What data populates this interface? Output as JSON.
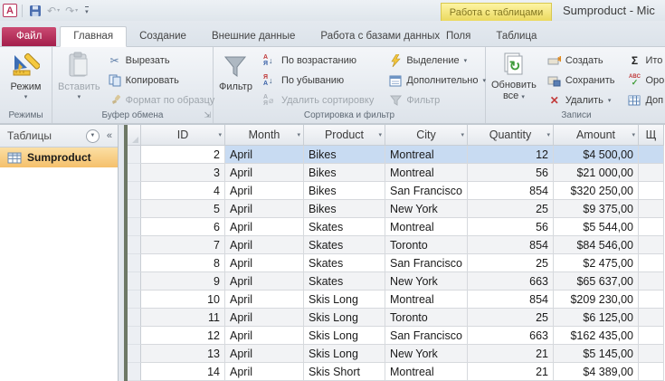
{
  "titlebar": {
    "app_title": "Sumproduct - Mic",
    "contextual_group": "Работа с таблицами"
  },
  "tabs": {
    "file": "Файл",
    "items": [
      "Главная",
      "Создание",
      "Внешние данные",
      "Работа с базами данных"
    ],
    "contextual": [
      "Поля",
      "Таблица"
    ],
    "active": "Главная"
  },
  "ribbon": {
    "view": "Режим",
    "views_group": "Режимы",
    "paste": "Вставить",
    "cut": "Вырезать",
    "copy": "Копировать",
    "format_painter": "Формат по образцу",
    "clipboard_group": "Буфер обмена",
    "filter_big": "Фильтр",
    "sort_asc": "По возрастанию",
    "sort_desc": "По убыванию",
    "remove_sort": "Удалить сортировку",
    "selection": "Выделение",
    "advanced": "Дополнительно",
    "filter_small": "Фильтр",
    "sort_group": "Сортировка и фильтр",
    "refresh_line1": "Обновить",
    "refresh_line2": "все",
    "new": "Создать",
    "save": "Сохранить",
    "delete": "Удалить",
    "totals_truncated": "Ито",
    "spelling_truncated": "Оро",
    "more_truncated": "Доп",
    "records_group": "Записи"
  },
  "nav": {
    "header": "Таблицы",
    "items": [
      "Sumproduct"
    ],
    "selected": "Sumproduct"
  },
  "table": {
    "columns": [
      "ID",
      "Month",
      "Product",
      "City",
      "Quantity",
      "Amount",
      "Щ"
    ],
    "selected_row_id": 2,
    "rows": [
      [
        "2",
        "April",
        "Bikes",
        "Montreal",
        "12",
        "$4 500,00",
        ""
      ],
      [
        "3",
        "April",
        "Bikes",
        "Montreal",
        "56",
        "$21 000,00",
        ""
      ],
      [
        "4",
        "April",
        "Bikes",
        "San Francisco",
        "854",
        "$320 250,00",
        ""
      ],
      [
        "5",
        "April",
        "Bikes",
        "New York",
        "25",
        "$9 375,00",
        ""
      ],
      [
        "6",
        "April",
        "Skates",
        "Montreal",
        "56",
        "$5 544,00",
        ""
      ],
      [
        "7",
        "April",
        "Skates",
        "Toronto",
        "854",
        "$84 546,00",
        ""
      ],
      [
        "8",
        "April",
        "Skates",
        "San Francisco",
        "25",
        "$2 475,00",
        ""
      ],
      [
        "9",
        "April",
        "Skates",
        "New York",
        "663",
        "$65 637,00",
        ""
      ],
      [
        "10",
        "April",
        "Skis Long",
        "Montreal",
        "854",
        "$209 230,00",
        ""
      ],
      [
        "11",
        "April",
        "Skis Long",
        "Toronto",
        "25",
        "$6 125,00",
        ""
      ],
      [
        "12",
        "April",
        "Skis Long",
        "San Francisco",
        "663",
        "$162 435,00",
        ""
      ],
      [
        "13",
        "April",
        "Skis Long",
        "New York",
        "21",
        "$5 145,00",
        ""
      ],
      [
        "14",
        "April",
        "Skis Short",
        "Montreal",
        "21",
        "$4 389,00",
        ""
      ]
    ]
  },
  "colors": {
    "file_tab": "#B52E5B",
    "contextual_yellow": "#EBD95F",
    "nav_selected_orange": "#F5C06B",
    "row_selection_blue": "#C8DBF2",
    "splitter": "#6D7866"
  }
}
